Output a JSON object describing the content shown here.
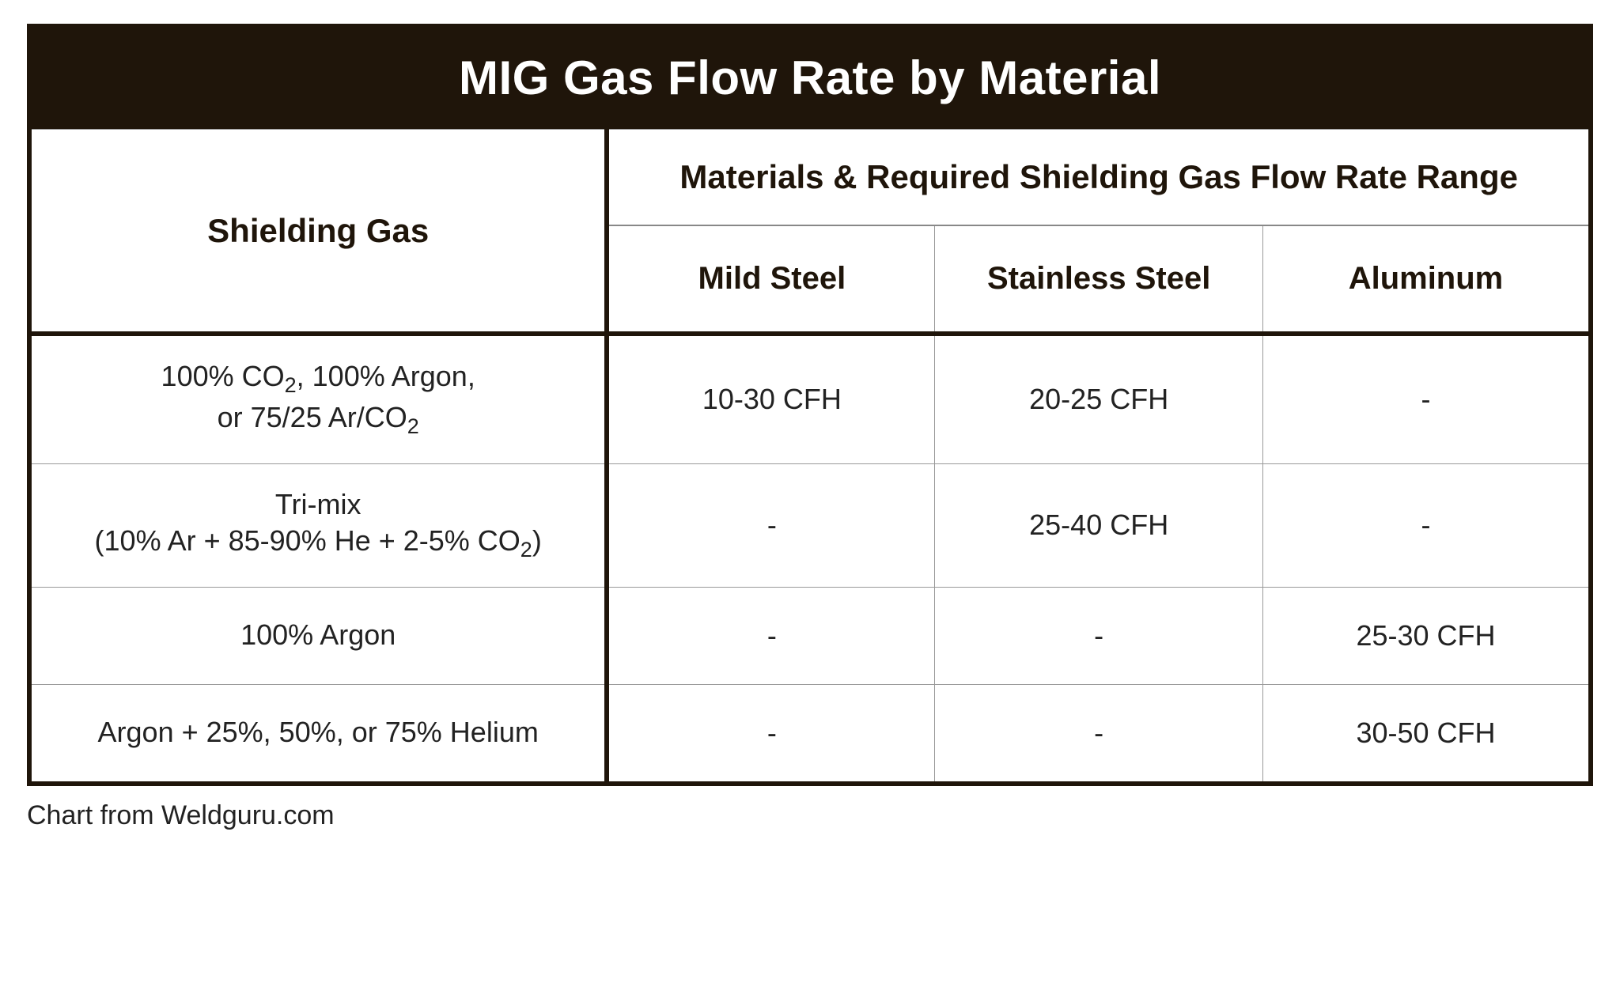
{
  "title": "MIG Gas Flow Rate by Material",
  "header_shielding": "Shielding Gas",
  "header_materials": "Materials & Required Shielding Gas Flow Rate Range",
  "columns": [
    "Mild Steel",
    "Stainless Steel",
    "Aluminum"
  ],
  "rows": [
    {
      "gas_html": "100% CO<span class='sub2'>2</span>, 100% Argon,<br>or 75/25 Ar/CO<span class='sub2'>2</span>",
      "mild_steel": "10-30 CFH",
      "stainless_steel": "20-25 CFH",
      "aluminum": "-"
    },
    {
      "gas_html": "Tri-mix<br>(10% Ar + 85-90% He + 2-5% CO<span class='sub2'>2</span>)",
      "mild_steel": "-",
      "stainless_steel": "25-40 CFH",
      "aluminum": "-"
    },
    {
      "gas_html": "100% Argon",
      "mild_steel": "-",
      "stainless_steel": "-",
      "aluminum": "25-30 CFH"
    },
    {
      "gas_html": "Argon + 25%, 50%, or 75% Helium",
      "mild_steel": "-",
      "stainless_steel": "-",
      "aluminum": "30-50 CFH"
    }
  ],
  "credit": "Chart from Weldguru.com",
  "colors": {
    "title_bg": "#1f150a",
    "title_fg": "#ffffff",
    "border_dark": "#1f150a",
    "border_light": "#999999",
    "text": "#222222",
    "background": "#ffffff"
  },
  "typography": {
    "title_fontsize": 60,
    "header_fontsize": 42,
    "subheader_fontsize": 40,
    "cell_fontsize": 36,
    "credit_fontsize": 34,
    "title_weight": 800,
    "header_weight": 800,
    "cell_weight": 400
  },
  "layout": {
    "outer_border_width": 6,
    "inner_border_width": 1,
    "first_col_width_pct": 37,
    "material_col_width_pct": 21
  }
}
